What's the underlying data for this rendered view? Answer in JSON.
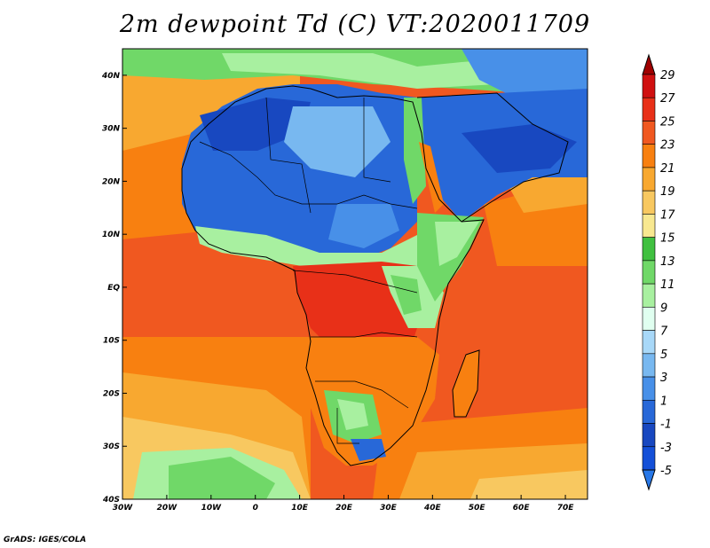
{
  "title": "2m dewpoint Td (C) VT:2020011709",
  "credit": "GrADS: IGES/COLA",
  "map": {
    "lon_range": [
      -30,
      75
    ],
    "lat_range": [
      -40,
      45
    ],
    "lon_ticks": [
      "30W",
      "20W",
      "10W",
      "0",
      "10E",
      "20E",
      "30E",
      "40E",
      "50E",
      "60E",
      "70E"
    ],
    "lat_ticks": [
      "40N",
      "30N",
      "20N",
      "10N",
      "EQ",
      "10S",
      "20S",
      "30S",
      "40S"
    ]
  },
  "colorbar": {
    "labels": [
      "29",
      "27",
      "25",
      "23",
      "21",
      "19",
      "17",
      "15",
      "13",
      "11",
      "9",
      "7",
      "5",
      "3",
      "1",
      "-1",
      "-3",
      "-5"
    ],
    "colors": [
      "#a00000",
      "#d01010",
      "#e83018",
      "#f05820",
      "#f88010",
      "#f8a830",
      "#f8c860",
      "#f8e890",
      "#40c040",
      "#70d868",
      "#a8f0a0",
      "#e0fff0",
      "#a8d8f8",
      "#78b8f0",
      "#4890e8",
      "#2868d8",
      "#1848c0",
      "#1450d8",
      "#2878e8"
    ]
  }
}
